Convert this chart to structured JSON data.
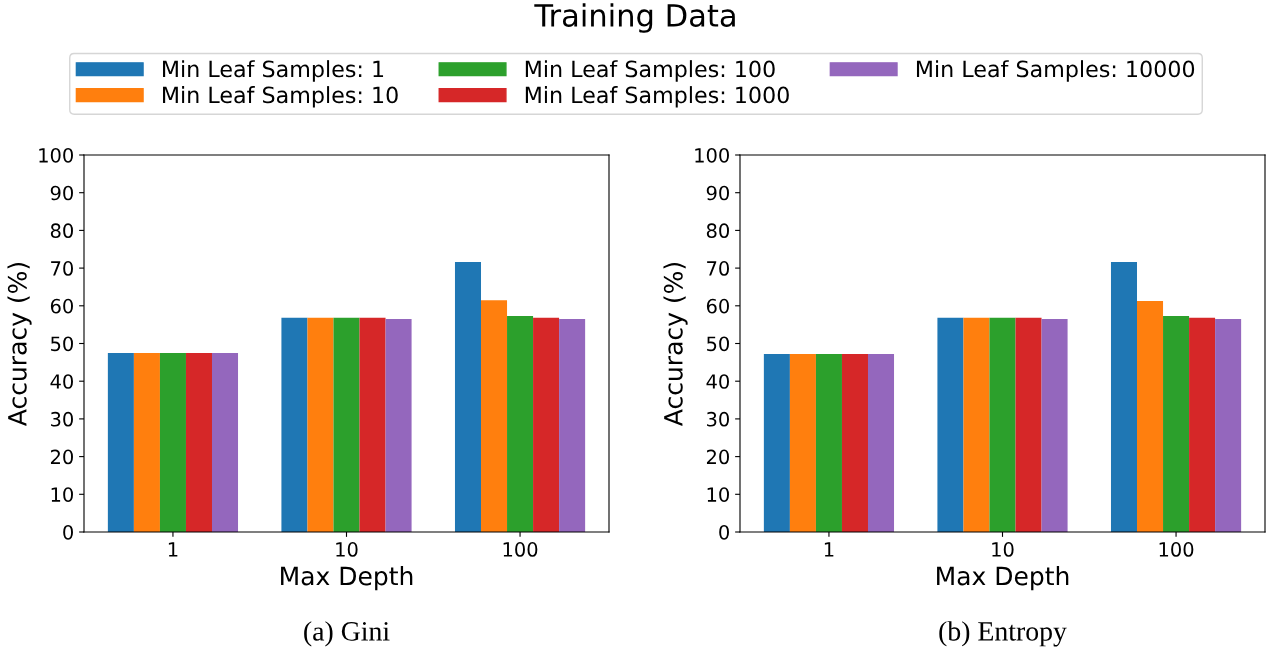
{
  "chart_data": [
    {
      "type": "bar",
      "title": "Training Data",
      "xlabel": "Max Depth",
      "ylabel": "Accuracy (%)",
      "categories": [
        "1",
        "10",
        "100"
      ],
      "ylim": [
        0,
        100
      ],
      "yticks": [
        0,
        10,
        20,
        30,
        40,
        50,
        60,
        70,
        80,
        90,
        100
      ],
      "grid": false,
      "legend": "top",
      "annotations": [
        "(a) Gini"
      ],
      "series": [
        {
          "name": "Min Leaf Samples: 1",
          "color": "#1f77b4",
          "values": [
            47.5,
            56.8,
            71.6
          ]
        },
        {
          "name": "Min Leaf Samples: 10",
          "color": "#ff7f0e",
          "values": [
            47.5,
            56.8,
            61.5
          ]
        },
        {
          "name": "Min Leaf Samples: 100",
          "color": "#2ca02c",
          "values": [
            47.5,
            56.8,
            57.3
          ]
        },
        {
          "name": "Min Leaf Samples: 1000",
          "color": "#d62728",
          "values": [
            47.5,
            56.8,
            56.8
          ]
        },
        {
          "name": "Min Leaf Samples: 10000",
          "color": "#9467bd",
          "values": [
            47.5,
            56.5,
            56.5
          ]
        }
      ]
    },
    {
      "type": "bar",
      "xlabel": "Max Depth",
      "ylabel": "Accuracy (%)",
      "categories": [
        "1",
        "10",
        "100"
      ],
      "ylim": [
        0,
        100
      ],
      "yticks": [
        0,
        10,
        20,
        30,
        40,
        50,
        60,
        70,
        80,
        90,
        100
      ],
      "grid": false,
      "annotations": [
        "(b) Entropy"
      ],
      "series": [
        {
          "color": "#1f77b4",
          "values": [
            47.2,
            56.8,
            71.6
          ]
        },
        {
          "color": "#ff7f0e",
          "values": [
            47.2,
            56.8,
            61.3
          ]
        },
        {
          "color": "#2ca02c",
          "values": [
            47.2,
            56.8,
            57.3
          ]
        },
        {
          "color": "#d62728",
          "values": [
            47.2,
            56.8,
            56.8
          ]
        },
        {
          "color": "#9467bd",
          "values": [
            47.2,
            56.5,
            56.5
          ]
        }
      ]
    }
  ]
}
